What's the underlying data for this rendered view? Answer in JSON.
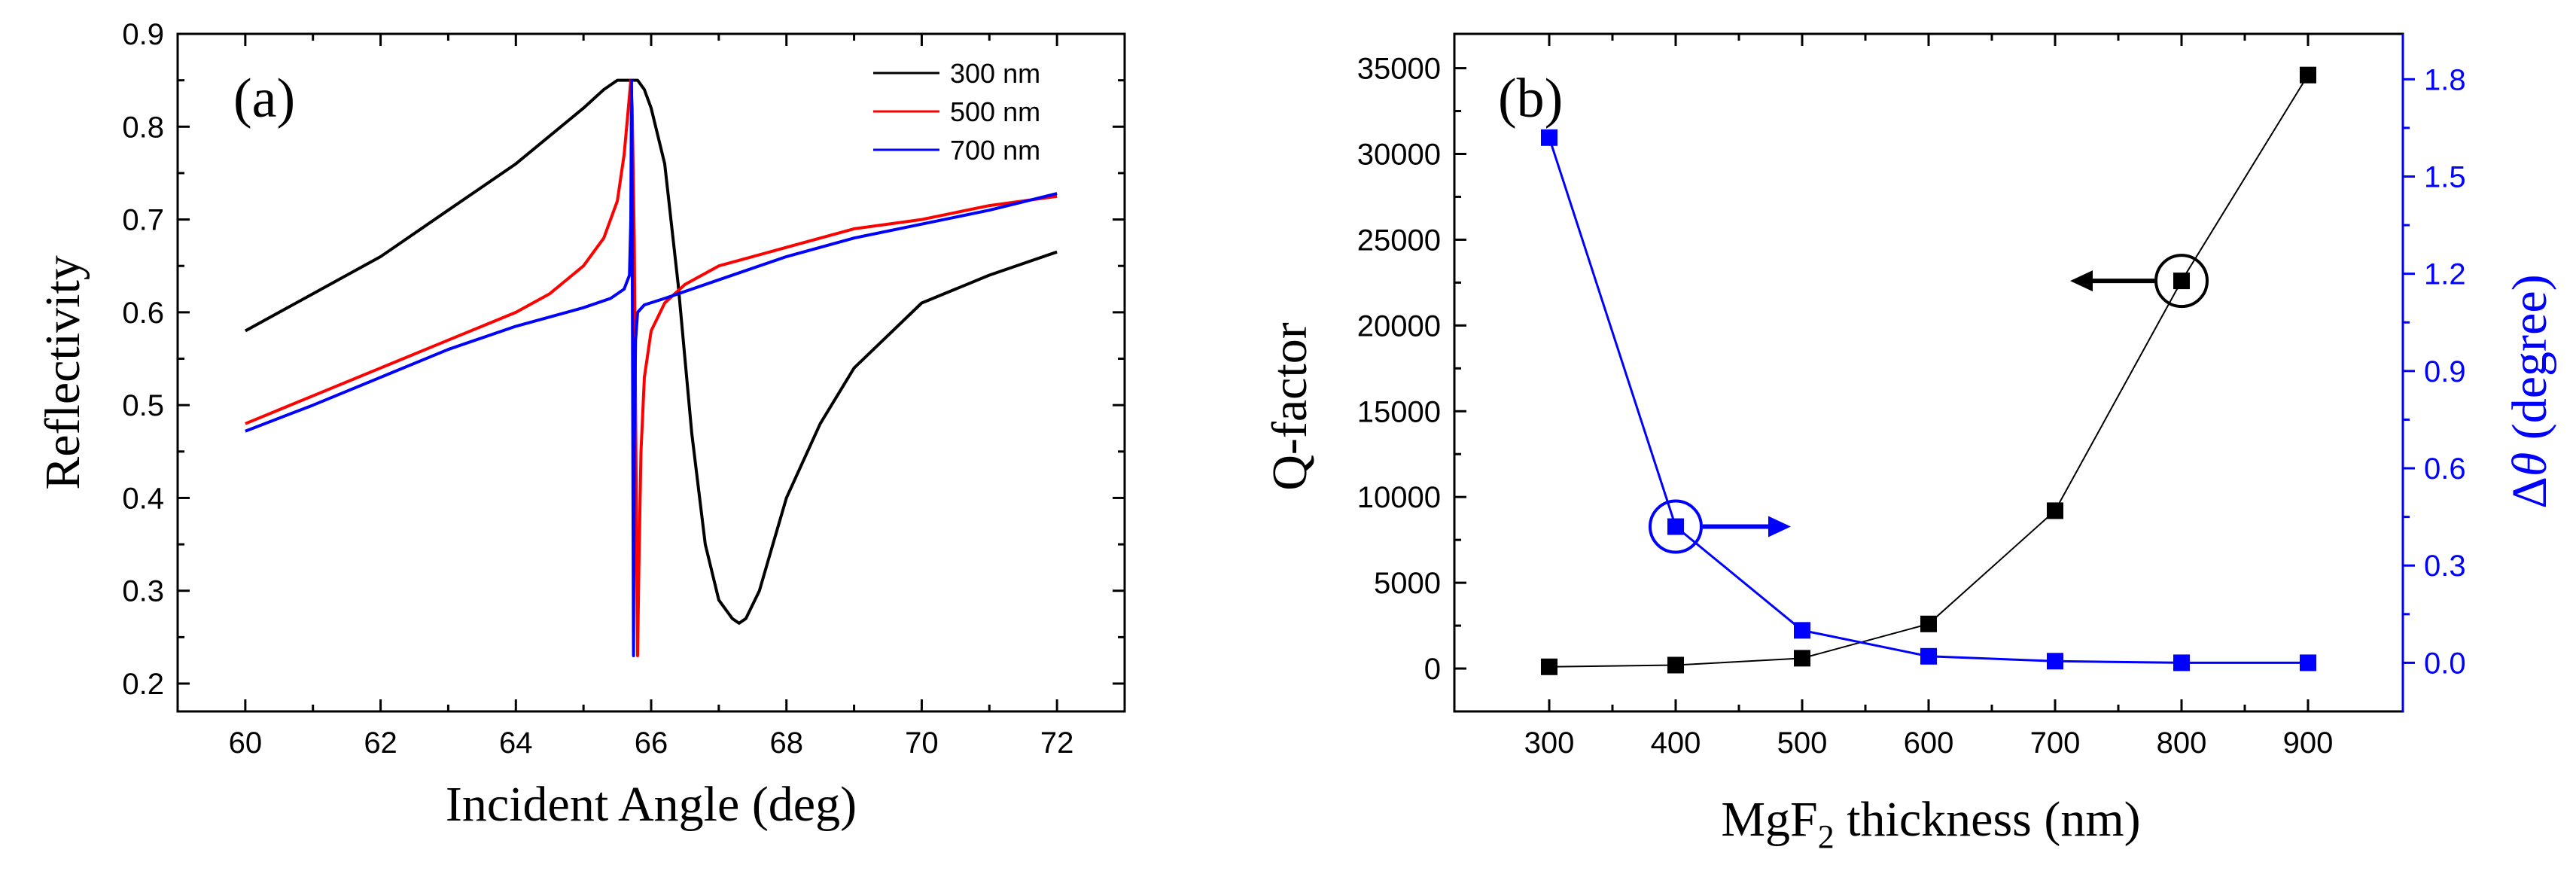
{
  "chart_data": [
    {
      "type": "line",
      "panel_label": "(a)",
      "xlabel": "Incident Angle (deg)",
      "ylabel": "Reflectivity",
      "xlim": [
        59,
        73
      ],
      "ylim": [
        0.17,
        0.9
      ],
      "xticks": [
        60,
        62,
        64,
        66,
        68,
        70,
        72
      ],
      "yticks": [
        0.2,
        0.3,
        0.4,
        0.5,
        0.6,
        0.7,
        0.8,
        0.9
      ],
      "legend_position": "top-right",
      "series": [
        {
          "name": "300 nm",
          "color": "#000000",
          "x": [
            60,
            61,
            62,
            63,
            64,
            64.5,
            65,
            65.3,
            65.5,
            65.7,
            65.8,
            65.9,
            66.0,
            66.2,
            66.4,
            66.6,
            66.8,
            67.0,
            67.2,
            67.3,
            67.4,
            67.6,
            67.8,
            68.0,
            68.5,
            69,
            70,
            71,
            72
          ],
          "y": [
            0.58,
            0.62,
            0.66,
            0.71,
            0.76,
            0.79,
            0.82,
            0.84,
            0.85,
            0.85,
            0.85,
            0.84,
            0.82,
            0.76,
            0.63,
            0.47,
            0.35,
            0.29,
            0.27,
            0.265,
            0.27,
            0.3,
            0.35,
            0.4,
            0.48,
            0.54,
            0.61,
            0.64,
            0.665
          ]
        },
        {
          "name": "500 nm",
          "color": "#ff0000",
          "x": [
            60,
            61,
            62,
            63,
            64,
            64.5,
            65,
            65.3,
            65.5,
            65.6,
            65.65,
            65.7,
            65.72,
            65.75,
            65.78,
            65.8,
            65.82,
            65.85,
            65.9,
            66.0,
            66.2,
            66.5,
            67,
            68,
            69,
            70,
            71,
            72
          ],
          "y": [
            0.48,
            0.51,
            0.54,
            0.57,
            0.6,
            0.62,
            0.65,
            0.68,
            0.72,
            0.77,
            0.81,
            0.85,
            0.82,
            0.68,
            0.4,
            0.23,
            0.33,
            0.45,
            0.53,
            0.58,
            0.61,
            0.63,
            0.65,
            0.67,
            0.69,
            0.7,
            0.715,
            0.725
          ]
        },
        {
          "name": "700 nm",
          "color": "#0000ff",
          "x": [
            60,
            61,
            62,
            63,
            64,
            65,
            65.4,
            65.6,
            65.68,
            65.7,
            65.71,
            65.72,
            65.73,
            65.74,
            65.75,
            65.77,
            65.8,
            65.9,
            66.2,
            67,
            68,
            69,
            70,
            71,
            72
          ],
          "y": [
            0.472,
            0.5,
            0.53,
            0.56,
            0.585,
            0.605,
            0.615,
            0.625,
            0.64,
            0.7,
            0.85,
            0.7,
            0.45,
            0.23,
            0.45,
            0.57,
            0.6,
            0.608,
            0.615,
            0.635,
            0.66,
            0.68,
            0.695,
            0.71,
            0.728
          ]
        }
      ]
    },
    {
      "type": "scatter",
      "panel_label": "(b)",
      "xlabel": "MgF",
      "xlabel_sub": "2",
      "xlabel_rest": " thickness (nm)",
      "ylabel_left": "Q-factor",
      "ylabel_right_prefix": "Δ",
      "ylabel_right_theta": "θ",
      "ylabel_right_rest": "  (degree)",
      "x": [
        300,
        400,
        500,
        600,
        700,
        800,
        900
      ],
      "xlim": [
        225,
        975
      ],
      "xticks": [
        300,
        400,
        500,
        600,
        700,
        800,
        900
      ],
      "left_axis": {
        "ylim": [
          -2500,
          37000
        ],
        "yticks": [
          0,
          5000,
          10000,
          15000,
          20000,
          25000,
          30000,
          35000
        ],
        "color": "#000000"
      },
      "right_axis": {
        "ylim": [
          -0.15,
          1.94
        ],
        "yticks": [
          "0.0",
          "0.3",
          "0.6",
          "0.9",
          "1.2",
          "1.5",
          "1.8"
        ],
        "color": "#0000ff"
      },
      "series": [
        {
          "name": "Q-factor",
          "axis": "left",
          "color": "#000000",
          "values": [
            100,
            200,
            600,
            2600,
            9200,
            22600,
            34600
          ]
        },
        {
          "name": "Δθ",
          "axis": "right",
          "color": "#0000ff",
          "values": [
            1.62,
            0.42,
            0.1,
            0.02,
            0.005,
            0.0,
            0.0
          ]
        }
      ],
      "annotations": [
        {
          "text": "circle-arrow-left",
          "x": 800,
          "series": "Q-factor"
        },
        {
          "text": "circle-arrow-right",
          "x": 400,
          "series": "Δθ"
        }
      ]
    }
  ]
}
